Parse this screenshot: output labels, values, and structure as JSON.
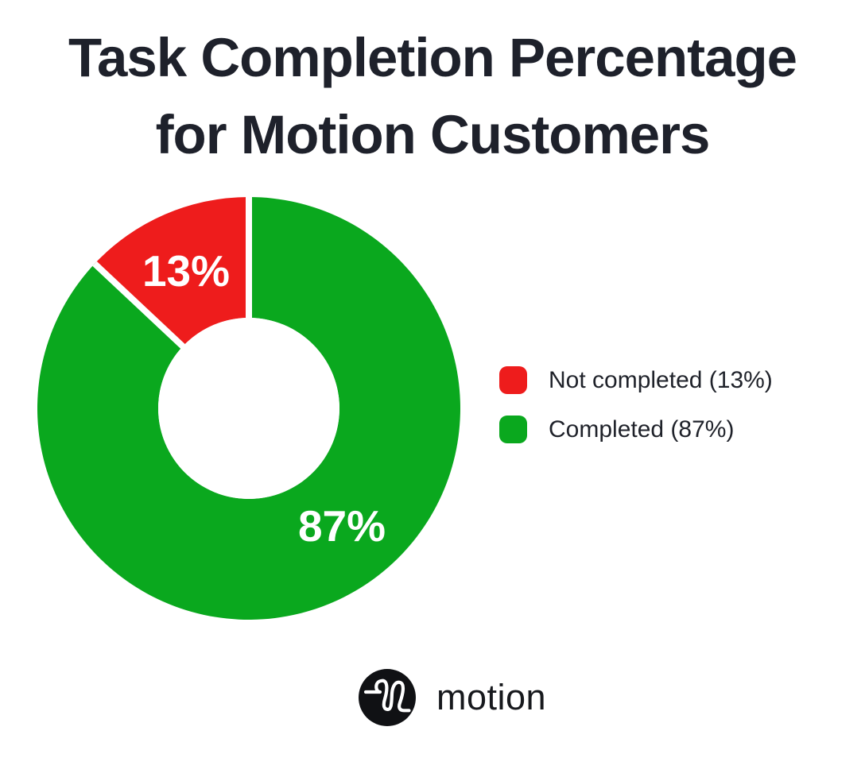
{
  "page": {
    "background": "#ffffff"
  },
  "title": {
    "line1": "Task Completion Percentage",
    "line2": "for Motion Customers"
  },
  "chart_data": {
    "type": "pie",
    "variant": "donut",
    "title": "Task Completion Percentage for Motion Customers",
    "slices": [
      {
        "label": "Not completed",
        "value": 13,
        "pct_label": "13%",
        "color": "#ee1c1c"
      },
      {
        "label": "Completed",
        "value": 87,
        "pct_label": "87%",
        "color": "#0aa81e"
      }
    ],
    "start_angle_deg": 0,
    "direction": "clockwise",
    "inner_radius_ratio": 0.43,
    "slice_gap_color": "#ffffff",
    "label_color": "#ffffff",
    "legend_position": "right"
  },
  "legend": {
    "items": [
      {
        "label": "Not completed (13%)",
        "color": "#ee1c1c"
      },
      {
        "label": "Completed (87%)",
        "color": "#0aa81e"
      }
    ]
  },
  "footer": {
    "brand": "motion",
    "logo_background": "#101114",
    "logo_stroke": "#ffffff"
  }
}
